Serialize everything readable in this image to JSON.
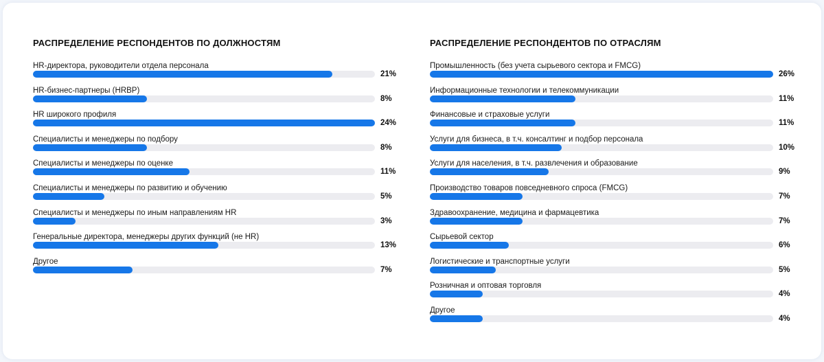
{
  "colors": {
    "bar": "#1677e8",
    "track": "#ececf0",
    "background": "#ffffff"
  },
  "chart_data": [
    {
      "type": "bar",
      "orientation": "horizontal",
      "title": "РАСПРЕДЕЛЕНИЕ РЕСПОНДЕНТОВ ПО ДОЛЖНОСТЯМ",
      "max_value": 24,
      "items": [
        {
          "label": "HR-директора, руководители отдела персонала",
          "value": 21,
          "value_label": "21%"
        },
        {
          "label": "HR-бизнес-партнеры (HRBP)",
          "value": 8,
          "value_label": "8%"
        },
        {
          "label": "HR широкого профиля",
          "value": 24,
          "value_label": "24%"
        },
        {
          "label": "Специалисты и менеджеры по подбору",
          "value": 8,
          "value_label": "8%"
        },
        {
          "label": "Специалисты и менеджеры по оценке",
          "value": 11,
          "value_label": "11%"
        },
        {
          "label": "Специалисты и менеджеры по развитию и обучению",
          "value": 5,
          "value_label": "5%"
        },
        {
          "label": "Специалисты и менеджеры по иным направлениям HR",
          "value": 3,
          "value_label": "3%"
        },
        {
          "label": "Генеральные директора, менеджеры других функций (не HR)",
          "value": 13,
          "value_label": "13%"
        },
        {
          "label": "Другое",
          "value": 7,
          "value_label": "7%"
        }
      ]
    },
    {
      "type": "bar",
      "orientation": "horizontal",
      "title": "РАСПРЕДЕЛЕНИЕ РЕСПОНДЕНТОВ ПО ОТРАСЛЯМ",
      "max_value": 26,
      "items": [
        {
          "label": "Промышленность (без учета сырьевого сектора и FMCG)",
          "value": 26,
          "value_label": "26%"
        },
        {
          "label": "Информационные технологии и телекоммуникации",
          "value": 11,
          "value_label": "11%"
        },
        {
          "label": "Финансовые и страховые услуги",
          "value": 11,
          "value_label": "11%"
        },
        {
          "label": "Услуги для бизнеса, в т.ч. консалтинг и подбор персонала",
          "value": 10,
          "value_label": "10%"
        },
        {
          "label": "Услуги для населения, в т.ч. развлечения и образование",
          "value": 9,
          "value_label": "9%"
        },
        {
          "label": "Производство товаров повседневного спроса (FMCG)",
          "value": 7,
          "value_label": "7%"
        },
        {
          "label": "Здравоохранение, медицина и фармацевтика",
          "value": 7,
          "value_label": "7%"
        },
        {
          "label": "Сырьевой сектор",
          "value": 6,
          "value_label": "6%"
        },
        {
          "label": "Логистические и транспортные услуги",
          "value": 5,
          "value_label": "5%"
        },
        {
          "label": "Розничная и оптовая торговля",
          "value": 4,
          "value_label": "4%"
        },
        {
          "label": "Другое",
          "value": 4,
          "value_label": "4%"
        }
      ]
    }
  ]
}
